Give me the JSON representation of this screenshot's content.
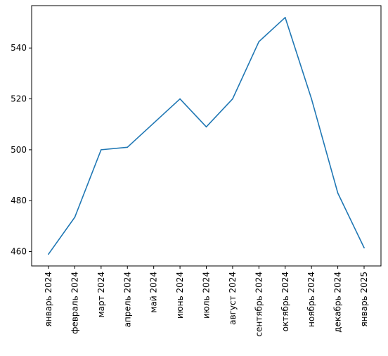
{
  "chart_data": {
    "type": "line",
    "title": "",
    "xlabel": "",
    "ylabel": "",
    "categories": [
      "январь 2024",
      "февраль 2024",
      "март 2024",
      "апрель 2024",
      "май 2024",
      "июнь 2024",
      "июль 2024",
      "август 2024",
      "сентябрь 2024",
      "октябрь 2024",
      "ноябрь 2024",
      "декабрь 2024",
      "январь 2025"
    ],
    "series": [
      {
        "values": [
          459,
          473.5,
          500,
          501,
          510.5,
          520,
          509,
          520,
          542.5,
          552,
          520,
          483,
          461.5
        ]
      }
    ],
    "y_ticks": [
      "460",
      "480",
      "500",
      "520",
      "540"
    ],
    "ylim": [
      454.35,
      556.65
    ],
    "grid": false,
    "legend": "none",
    "line_color": "#1f77b4"
  }
}
